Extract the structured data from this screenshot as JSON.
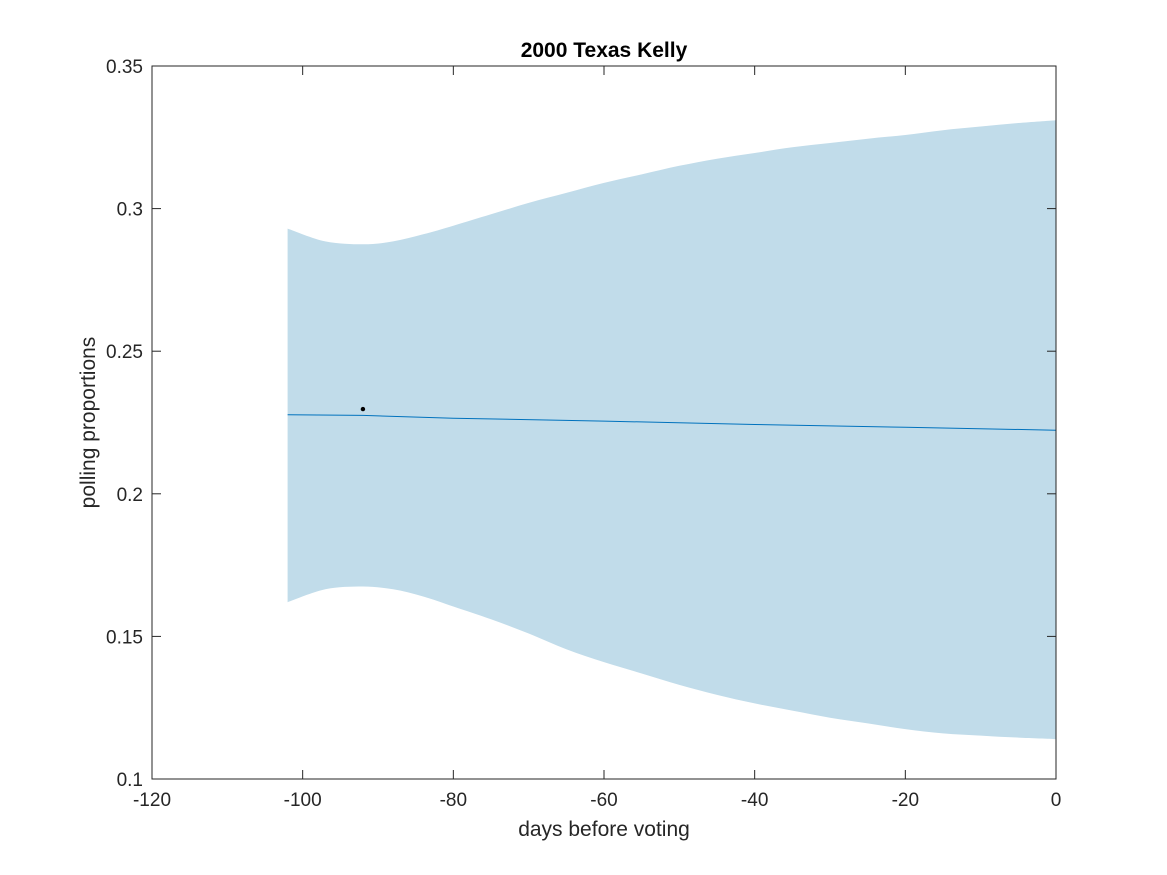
{
  "chart_data": {
    "type": "line",
    "title": "2000 Texas Kelly",
    "xlabel": "days before voting",
    "ylabel": "polling proportions",
    "xlim": [
      -120,
      0
    ],
    "ylim": [
      0.1,
      0.35
    ],
    "x_ticks": [
      -120,
      -100,
      -80,
      -60,
      -40,
      -20,
      0
    ],
    "x_tick_labels": [
      "-120",
      "-100",
      "-80",
      "-60",
      "-40",
      "-20",
      "0"
    ],
    "y_ticks": [
      0.1,
      0.15,
      0.2,
      0.25,
      0.3,
      0.35
    ],
    "y_tick_labels": [
      "0.1",
      "0.15",
      "0.2",
      "0.25",
      "0.3",
      "0.35"
    ],
    "grid": false,
    "box": true,
    "colors": {
      "band": "#c1dcea",
      "line": "#0072bd",
      "point": "#000000",
      "axis": "#262626"
    },
    "band": {
      "x": [
        -102,
        -97,
        -92,
        -88,
        -84,
        -80,
        -75,
        -70,
        -65,
        -60,
        -55,
        -50,
        -45,
        -40,
        -35,
        -30,
        -25,
        -20,
        -15,
        -10,
        -5,
        0
      ],
      "upper": [
        0.293,
        0.2885,
        0.2875,
        0.2885,
        0.291,
        0.294,
        0.298,
        0.302,
        0.3055,
        0.309,
        0.312,
        0.315,
        0.3175,
        0.3195,
        0.3215,
        0.323,
        0.3245,
        0.3258,
        0.3275,
        0.3288,
        0.33,
        0.331
      ],
      "lower": [
        0.162,
        0.1665,
        0.1675,
        0.1665,
        0.164,
        0.1605,
        0.156,
        0.151,
        0.1455,
        0.141,
        0.137,
        0.133,
        0.1295,
        0.1265,
        0.124,
        0.1215,
        0.1195,
        0.1175,
        0.116,
        0.1152,
        0.1145,
        0.114
      ]
    },
    "series": [
      {
        "x": [
          -102,
          -92,
          -80,
          -60,
          -40,
          -20,
          0
        ],
        "values": [
          0.2277,
          0.2275,
          0.2265,
          0.2255,
          0.2243,
          0.2233,
          0.2223
        ]
      }
    ],
    "points": [
      {
        "x": -92,
        "y": 0.2297
      }
    ]
  }
}
